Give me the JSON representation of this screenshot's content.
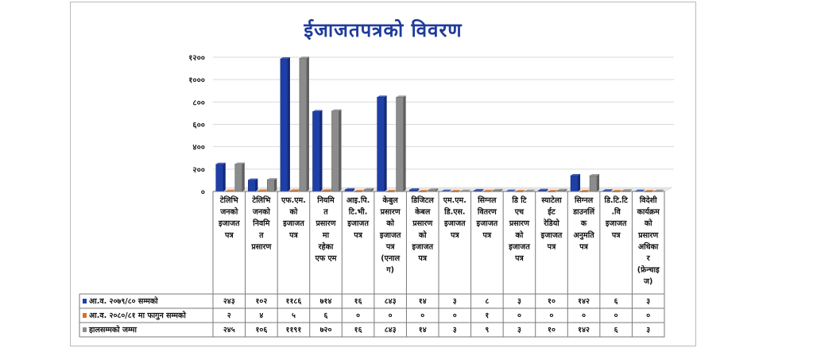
{
  "chart_data": {
    "type": "bar",
    "title": "ईजाजतपत्रको विवरण",
    "y_ticks": [
      "०",
      "२००",
      "४००",
      "६००",
      "८००",
      "१०००",
      "१२००"
    ],
    "ylim": [
      0,
      1200
    ],
    "grid": true,
    "categories": [
      [
        "टेलिभि",
        "जनको",
        "इजाजत",
        "पत्र"
      ],
      [
        "टेलिभि",
        "जनको",
        "निवमि",
        "त",
        "प्रसारण"
      ],
      [
        "एफ.एम.",
        "को",
        "इजाजत",
        "पत्र"
      ],
      [
        "नियमि",
        "त",
        "प्रसारण",
        "मा",
        "रहेका",
        "एफ एम"
      ],
      [
        "आइ.पि.",
        "टि.भी.",
        "इजाजत",
        "पत्र"
      ],
      [
        "केबुल",
        "प्रसारण",
        "को",
        "इजाजत",
        "पत्र",
        "(एनाल",
        "ग)"
      ],
      [
        "डिजिटल",
        "केबल",
        "प्रसारण",
        "को",
        "इजाजत",
        "पत्र"
      ],
      [
        "एम.एम.",
        "डि.एस.",
        "इजाजत",
        "पत्र"
      ],
      [
        "सिग्नल",
        "वितरण",
        "इजाजत",
        "पत्र"
      ],
      [
        "डि टि",
        "एच",
        "प्रसारण",
        "को",
        "इजाजत",
        "पत्र"
      ],
      [
        "स्याटेला",
        "ईट",
        "रेडियो",
        "इजाजत",
        "पत्र"
      ],
      [
        "सिग्नल",
        "डाउनलिं",
        "क",
        "अनुमति",
        "पत्र"
      ],
      [
        "डि.टि.टि",
        ".वि",
        "इजाजत",
        "पत्र"
      ],
      [
        "विदेशी",
        "कार्यक्रम",
        "को",
        "प्रसारण",
        "अधिका",
        "र",
        "(फ्रेन्चाइ",
        "ज)"
      ]
    ],
    "series": [
      {
        "name": "आ.व. २०७९/८० सम्मको",
        "color": "#1f3fa8",
        "values": [
          243,
          102,
          1186,
          714,
          16,
          843,
          14,
          3,
          8,
          3,
          10,
          142,
          6,
          3
        ],
        "labels": [
          "२४३",
          "१०२",
          "११८६",
          "७१४",
          "१६",
          "८४३",
          "१४",
          "३",
          "८",
          "३",
          "१०",
          "१४२",
          "६",
          "३"
        ]
      },
      {
        "name": "आ.व. २०८०/८१ मा फागुन सम्मको",
        "color": "#e0701c",
        "values": [
          2,
          4,
          5,
          6,
          0,
          0,
          0,
          0,
          1,
          0,
          0,
          0,
          0,
          0
        ],
        "labels": [
          "२",
          "४",
          "५",
          "६",
          "०",
          "०",
          "०",
          "०",
          "१",
          "०",
          "०",
          "०",
          "०",
          "०"
        ]
      },
      {
        "name": "हालसम्मको जम्मा",
        "color": "#8c8c8c",
        "values": [
          245,
          106,
          1191,
          720,
          16,
          843,
          14,
          3,
          9,
          3,
          10,
          142,
          6,
          3
        ],
        "labels": [
          "२४५",
          "१०६",
          "११९१",
          "७२०",
          "१६",
          "८४३",
          "१४",
          "३",
          "९",
          "३",
          "१०",
          "१४२",
          "६",
          "३"
        ]
      }
    ]
  }
}
